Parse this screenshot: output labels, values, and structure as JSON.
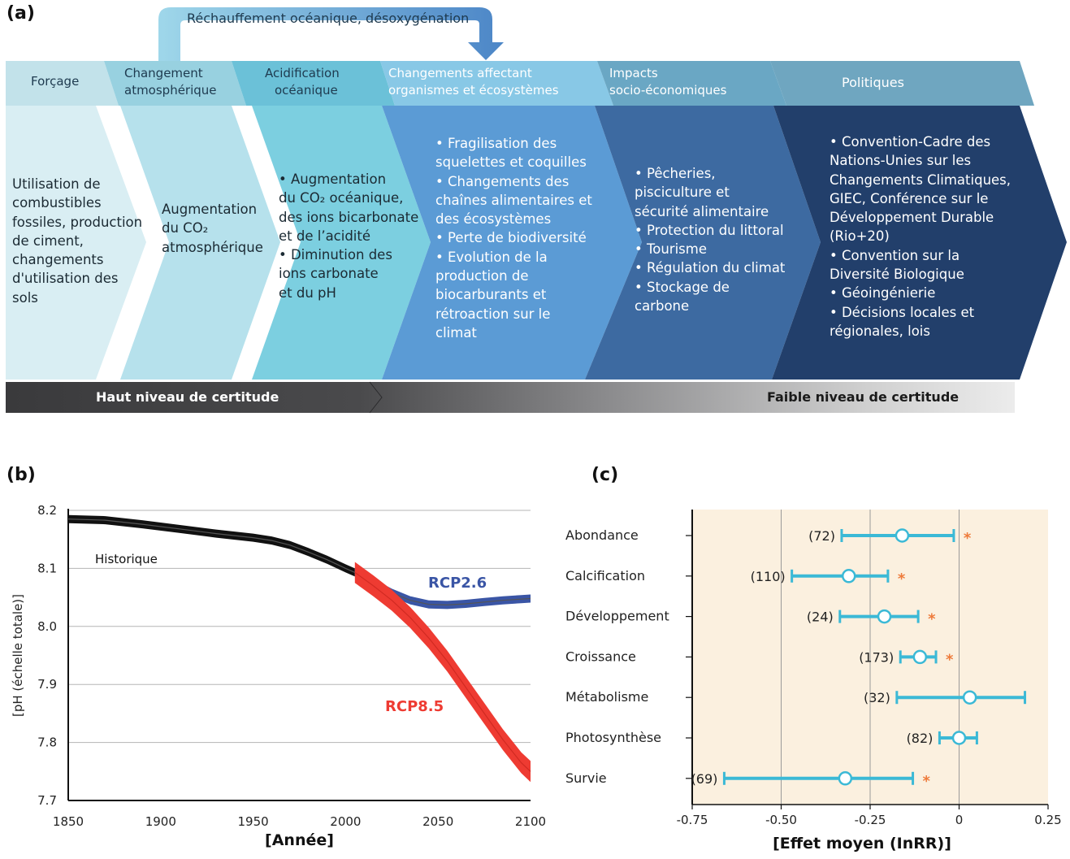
{
  "panel_a": {
    "letter": "(a)",
    "feedback_label": "Réchauffement océanique, désoxygénation",
    "stages": [
      {
        "header": [
          "Forçage"
        ],
        "body": [
          "Utilisation de",
          "combustibles",
          "fossiles, production",
          "de ciment,",
          "changements",
          "d'utilisation des",
          "sols"
        ]
      },
      {
        "header": [
          "Changement",
          "atmosphérique"
        ],
        "body": [
          "Augmentation",
          "du CO₂",
          "atmosphérique"
        ]
      },
      {
        "header": [
          "Acidification",
          "océanique"
        ],
        "body": [
          "• Augmentation",
          "du CO₂ océanique,",
          "des ions bicarbonate",
          "et de l’acidité",
          "• Diminution des",
          "ions carbonate",
          "et du pH"
        ]
      },
      {
        "header": [
          "Changements affectant",
          "organismes et écosystèmes"
        ],
        "body": [
          "• Fragilisation des",
          "squelettes et coquilles",
          "• Changements des",
          "chaînes alimentaires et",
          "des écosystèmes",
          "• Perte de biodiversité",
          "• Evolution de la",
          "production de",
          "biocarburants et",
          "rétroaction sur le",
          "climat"
        ]
      },
      {
        "header": [
          "Impacts",
          "socio-économiques"
        ],
        "body": [
          "• Pêcheries,",
          "pisciculture et",
          "sécurité alimentaire",
          "• Protection du littoral",
          "• Tourisme",
          "• Régulation du climat",
          "• Stockage de",
          "carbone"
        ]
      },
      {
        "header": [
          "Politiques"
        ],
        "body": [
          "• Convention-Cadre des",
          "Nations-Unies sur les",
          "Changements Climatiques,",
          "GIEC, Conférence sur le",
          "Développement Durable",
          "(Rio+20)",
          "• Convention sur la",
          "Diversité Biologique",
          "• Géoingénierie",
          "• Décisions locales et",
          "régionales, lois"
        ]
      }
    ],
    "certainty_high": "Haut niveau de certitude",
    "certainty_low": "Faible niveau de certitude",
    "colors": {
      "body": [
        "#d9eef3",
        "#b6e1ec",
        "#7ccfe0",
        "#5b9bd5",
        "#3d6aa1",
        "#223f6b"
      ],
      "header": [
        "#c2e2ea",
        "#98d1e0",
        "#6bc1d8",
        "#88c8e6",
        "#6aa7c4",
        "#6fa6c0"
      ]
    }
  },
  "chart_data": [
    {
      "panel": "(b)",
      "type": "line",
      "xlabel": "[Année]",
      "ylabel": "[pH (échelle totale)]",
      "xlim": [
        1850,
        2100
      ],
      "ylim": [
        7.7,
        8.2
      ],
      "xticks": [
        "1850",
        "1900",
        "1950",
        "2000",
        "2050",
        "2100"
      ],
      "yticks": [
        "7.7",
        "7.8",
        "7.9",
        "8.0",
        "8.1",
        "8.2"
      ],
      "grid": "horizontal",
      "series": [
        {
          "name": "Historique",
          "color": "#111111",
          "x": [
            1850,
            1870,
            1890,
            1910,
            1930,
            1950,
            1960,
            1970,
            1980,
            1990,
            2000,
            2005
          ],
          "y": [
            8.185,
            8.183,
            8.176,
            8.168,
            8.16,
            8.153,
            8.148,
            8.14,
            8.128,
            8.115,
            8.1,
            8.093
          ]
        },
        {
          "name": "RCP2.6",
          "color": "#3a55a5",
          "x": [
            2005,
            2015,
            2025,
            2035,
            2045,
            2055,
            2065,
            2075,
            2085,
            2095,
            2100
          ],
          "y": [
            8.093,
            8.075,
            8.058,
            8.045,
            8.038,
            8.037,
            8.039,
            8.042,
            8.045,
            8.047,
            8.048
          ]
        },
        {
          "name": "RCP8.5",
          "color": "#ee3b32",
          "x": [
            2005,
            2015,
            2025,
            2035,
            2045,
            2055,
            2065,
            2075,
            2085,
            2095,
            2100
          ],
          "y": [
            8.093,
            8.07,
            8.045,
            8.015,
            7.98,
            7.94,
            7.895,
            7.85,
            7.805,
            7.765,
            7.75
          ]
        }
      ],
      "band_halfwidth": [
        0.007,
        0.007,
        0.018
      ]
    },
    {
      "panel": "(c)",
      "type": "scatter",
      "xlabel": "[Effet moyen (InRR)]",
      "xlim": [
        -0.75,
        0.25
      ],
      "xticks": [
        "-0.75",
        "-0.50",
        "-0.25",
        "0",
        "0.25"
      ],
      "xtick_values": [
        -0.75,
        -0.5,
        -0.25,
        0,
        0.25
      ],
      "gridlines": [
        -0.5,
        -0.25,
        0
      ],
      "rows": [
        {
          "label": "Abondance",
          "n": "(72)",
          "mean": -0.16,
          "lo": -0.33,
          "hi": -0.015,
          "significant": true
        },
        {
          "label": "Calcification",
          "n": "(110)",
          "mean": -0.31,
          "lo": -0.47,
          "hi": -0.2,
          "significant": true
        },
        {
          "label": "Développement",
          "n": "(24)",
          "mean": -0.21,
          "lo": -0.335,
          "hi": -0.115,
          "significant": true
        },
        {
          "label": "Croissance",
          "n": "(173)",
          "mean": -0.11,
          "lo": -0.165,
          "hi": -0.065,
          "significant": true
        },
        {
          "label": "Métabolisme",
          "n": "(32)",
          "mean": 0.03,
          "lo": -0.175,
          "hi": 0.185,
          "significant": false
        },
        {
          "label": "Photosynthèse",
          "n": "(82)",
          "mean": 0.0,
          "lo": -0.055,
          "hi": 0.05,
          "significant": false
        },
        {
          "label": "Survie",
          "n": "(69)",
          "mean": -0.32,
          "lo": -0.66,
          "hi": -0.13,
          "significant": true
        }
      ],
      "significance_marker": "*",
      "colors": {
        "bar": "#3bb9d6",
        "star": "#ee7b3b",
        "background": "#fbf0df"
      }
    }
  ]
}
